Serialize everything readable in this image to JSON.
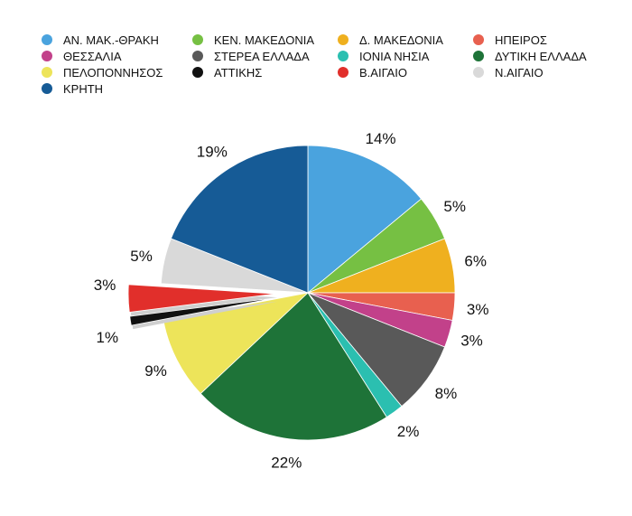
{
  "chart_data": {
    "type": "pie",
    "title": "",
    "unit": "%",
    "legend_position": "top",
    "series": [
      {
        "name": "ΑΝ. ΜΑΚ.-ΘΡΑΚΗ",
        "value": 14,
        "label": "14%",
        "color": "#4aa3de"
      },
      {
        "name": "ΚΕΝ. ΜΑΚΕΔΟΝΙΑ",
        "value": 5,
        "label": "5%",
        "color": "#76c043"
      },
      {
        "name": "Δ. ΜΑΚΕΔΟΝΙΑ",
        "value": 6,
        "label": "6%",
        "color": "#efb01f"
      },
      {
        "name": "ΗΠΕΙΡΟΣ",
        "value": 3,
        "label": "3%",
        "color": "#e8604f"
      },
      {
        "name": "ΘΕΣΣΑΛΙΑ",
        "value": 3,
        "label": "3%",
        "color": "#c2418a"
      },
      {
        "name": "ΣΤΕΡΕΑ ΕΛΛΑΔΑ",
        "value": 8,
        "label": "8%",
        "color": "#595959"
      },
      {
        "name": "ΙΟΝΙΑ ΝΗΣΙΑ",
        "value": 2,
        "label": "2%",
        "color": "#2bbfb0"
      },
      {
        "name": "ΔΥΤΙΚΗ ΕΛΛΑΔΑ",
        "value": 22,
        "label": "22%",
        "color": "#1e7338"
      },
      {
        "name": "ΠΕΛΟΠΟΝΝΗΣΟΣ",
        "value": 9,
        "label": "9%",
        "color": "#ede45a"
      },
      {
        "name": "ΑΤΤΙΚΗΣ",
        "value": 1,
        "label": "1%",
        "color": "#111111",
        "exploded": true
      },
      {
        "name": "Β.ΑΙΓΑΙΟ",
        "value": 3,
        "label": "3%",
        "color": "#e12f2b",
        "exploded": true
      },
      {
        "name": "Ν.ΑΙΓΑΙΟ",
        "value": 5,
        "label": "5%",
        "color": "#d9d9d9"
      },
      {
        "name": "ΚΡΗΤΗ",
        "value": 19,
        "label": "19%",
        "color": "#165b96"
      }
    ]
  }
}
